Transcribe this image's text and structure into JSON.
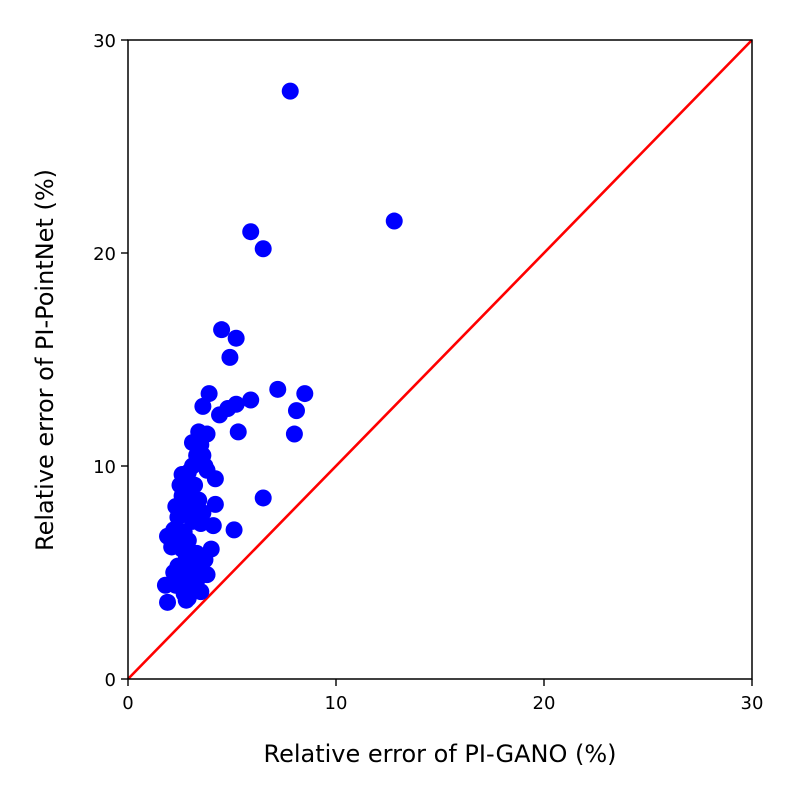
{
  "chart_data": {
    "type": "scatter",
    "xlabel": "Relative error of PI-GANO (%)",
    "ylabel": "Relative error of PI-PointNet (%)",
    "xlim": [
      0,
      30
    ],
    "ylim": [
      0,
      30
    ],
    "xticks": [
      "0",
      "10",
      "20",
      "30"
    ],
    "yticks": [
      "0",
      "10",
      "20",
      "30"
    ],
    "grid": false,
    "marker_color": "#0000ff",
    "reference_line": {
      "from": [
        0,
        0
      ],
      "to": [
        30,
        30
      ],
      "color": "#ff0000"
    },
    "points": [
      [
        7.8,
        27.6
      ],
      [
        12.8,
        21.5
      ],
      [
        5.9,
        21.0
      ],
      [
        6.5,
        20.2
      ],
      [
        4.5,
        16.4
      ],
      [
        5.2,
        16.0
      ],
      [
        4.9,
        15.1
      ],
      [
        7.2,
        13.6
      ],
      [
        8.5,
        13.4
      ],
      [
        3.9,
        13.4
      ],
      [
        5.9,
        13.1
      ],
      [
        5.2,
        12.9
      ],
      [
        3.6,
        12.8
      ],
      [
        4.8,
        12.7
      ],
      [
        4.4,
        12.4
      ],
      [
        8.1,
        12.6
      ],
      [
        5.3,
        11.6
      ],
      [
        8.0,
        11.5
      ],
      [
        3.8,
        11.5
      ],
      [
        3.4,
        11.6
      ],
      [
        3.1,
        11.1
      ],
      [
        3.5,
        11.0
      ],
      [
        3.3,
        10.5
      ],
      [
        3.6,
        10.5
      ],
      [
        3.1,
        10.0
      ],
      [
        3.7,
        10.0
      ],
      [
        2.6,
        9.6
      ],
      [
        2.9,
        9.7
      ],
      [
        3.8,
        9.8
      ],
      [
        4.2,
        9.4
      ],
      [
        2.5,
        9.1
      ],
      [
        3.2,
        9.1
      ],
      [
        2.8,
        8.9
      ],
      [
        2.6,
        8.6
      ],
      [
        3.0,
        8.5
      ],
      [
        3.4,
        8.4
      ],
      [
        6.5,
        8.5
      ],
      [
        2.3,
        8.1
      ],
      [
        4.2,
        8.2
      ],
      [
        2.8,
        8.0
      ],
      [
        3.3,
        7.9
      ],
      [
        3.6,
        7.8
      ],
      [
        2.4,
        7.6
      ],
      [
        3.1,
        7.4
      ],
      [
        3.5,
        7.3
      ],
      [
        4.1,
        7.2
      ],
      [
        2.2,
        7.0
      ],
      [
        2.7,
        6.9
      ],
      [
        5.1,
        7.0
      ],
      [
        1.9,
        6.7
      ],
      [
        2.5,
        6.6
      ],
      [
        2.9,
        6.5
      ],
      [
        2.1,
        6.2
      ],
      [
        2.6,
        6.1
      ],
      [
        4.0,
        6.1
      ],
      [
        3.3,
        5.9
      ],
      [
        2.8,
        5.8
      ],
      [
        3.7,
        5.6
      ],
      [
        3.1,
        5.5
      ],
      [
        2.4,
        5.3
      ],
      [
        3.4,
        5.2
      ],
      [
        2.2,
        5.0
      ],
      [
        2.9,
        5.0
      ],
      [
        3.8,
        4.9
      ],
      [
        2.6,
        4.7
      ],
      [
        3.3,
        4.6
      ],
      [
        1.8,
        4.4
      ],
      [
        2.3,
        4.4
      ],
      [
        3.0,
        4.3
      ],
      [
        3.5,
        4.1
      ],
      [
        2.7,
        4.0
      ],
      [
        2.9,
        3.8
      ],
      [
        1.9,
        3.6
      ],
      [
        2.8,
        3.7
      ]
    ]
  }
}
